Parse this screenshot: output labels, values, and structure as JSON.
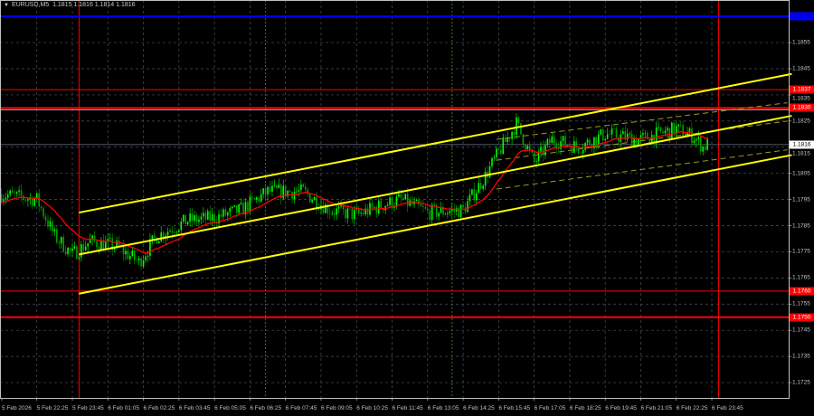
{
  "header": {
    "symbol": "EURUSD,M5",
    "quotes": "1.1815 1.1816 1.1814 1.1816"
  },
  "chart_data": {
    "type": "candlestick",
    "symbol": "EURUSD",
    "timeframe": "M5",
    "ylim": [
      1.1719,
      1.1871
    ],
    "grid": true,
    "price_ticks": [
      "1.1855",
      "1.1845",
      "1.1835",
      "1.1825",
      "1.1815",
      "1.1805",
      "1.1795",
      "1.1785",
      "1.1775",
      "1.1765",
      "1.1755",
      "1.1745",
      "1.1735",
      "1.1725"
    ],
    "time_ticks": [
      "5 Feb 2026",
      "5 Feb 22:25",
      "5 Feb 23:45",
      "6 Feb 01:05",
      "6 Feb 02:25",
      "6 Feb 03:45",
      "6 Feb 05:05",
      "6 Feb 06:25",
      "6 Feb 07:45",
      "6 Feb 09:05",
      "6 Feb 10:25",
      "6 Feb 11:45",
      "6 Feb 13:05",
      "6 Feb 14:25",
      "6 Feb 15:45",
      "6 Feb 17:05",
      "6 Feb 18:25",
      "6 Feb 19:45",
      "6 Feb 21:05",
      "6 Feb 22:25",
      "6 Feb 23:45"
    ],
    "price_path": [
      [
        "5 Feb 21:05",
        1.1797
      ],
      [
        "5 Feb 22:25",
        1.1795
      ],
      [
        "5 Feb 23:05",
        1.1781
      ],
      [
        "5 Feb 23:45",
        1.1774
      ],
      [
        "6 Feb 00:25",
        1.1779
      ],
      [
        "6 Feb 01:25",
        1.1777
      ],
      [
        "6 Feb 02:15",
        1.1771
      ],
      [
        "6 Feb 02:55",
        1.1781
      ],
      [
        "6 Feb 04:05",
        1.1787
      ],
      [
        "6 Feb 05:05",
        1.1788
      ],
      [
        "6 Feb 06:05",
        1.1791
      ],
      [
        "6 Feb 07:05",
        1.1798
      ],
      [
        "6 Feb 08:25",
        1.1798
      ],
      [
        "6 Feb 09:25",
        1.1791
      ],
      [
        "6 Feb 10:25",
        1.1789
      ],
      [
        "6 Feb 11:25",
        1.1793
      ],
      [
        "6 Feb 12:05",
        1.1795
      ],
      [
        "6 Feb 13:05",
        1.179
      ],
      [
        "6 Feb 14:25",
        1.1791
      ],
      [
        "6 Feb 15:15",
        1.1804
      ],
      [
        "6 Feb 15:45",
        1.1813
      ],
      [
        "6 Feb 16:25",
        1.1824
      ],
      [
        "6 Feb 17:05",
        1.1809
      ],
      [
        "6 Feb 17:45",
        1.1818
      ],
      [
        "6 Feb 18:45",
        1.1815
      ],
      [
        "6 Feb 19:45",
        1.182
      ],
      [
        "6 Feb 21:05",
        1.1818
      ],
      [
        "6 Feb 22:25",
        1.1822
      ],
      [
        "6 Feb 23:05",
        1.1819
      ],
      [
        "6 Feb 23:25",
        1.1815
      ],
      [
        "6 Feb 23:35",
        1.1816
      ]
    ],
    "current_price": "1.1816",
    "horizontal_levels": [
      {
        "price": "1.1865",
        "color": "#0000ff"
      },
      {
        "price": "1.1837",
        "color": "#ff0000"
      },
      {
        "price": "1.1830",
        "color": "#ff0000"
      },
      {
        "price": "1.1760",
        "color": "#ff0000"
      },
      {
        "price": "1.1750",
        "color": "#ff0000"
      }
    ],
    "vertical_lines": [
      {
        "time": "6 Feb 00:00",
        "color": "#ff0000"
      },
      {
        "time": "7 Feb 00:00",
        "color": "#ff0000"
      },
      {
        "time": "6 Feb 07:00",
        "color": "#2e7d1e"
      },
      {
        "time": "6 Feb 14:00",
        "color": "#2e7d1e"
      }
    ],
    "channel": {
      "start": "6 Feb 00:00",
      "end": "7 Feb 02:45",
      "upper": [
        1.179,
        1.1843
      ],
      "middle": [
        1.1774,
        1.1827
      ],
      "lower": [
        1.1759,
        1.1812
      ],
      "color": "#ffff00"
    },
    "inner_channel": {
      "start": "6 Feb 15:40",
      "end": "7 Feb 02:35",
      "upper": [
        1.1818,
        1.1832
      ],
      "middle": [
        1.181,
        1.1825
      ],
      "lower": [
        1.1799,
        1.1814
      ],
      "color": "#9a9a20"
    },
    "colors": {
      "bull": "#00ff00",
      "bear": "#00a000",
      "ma": "#ff0000",
      "background": "#000000",
      "grid": "#4a5060"
    }
  }
}
